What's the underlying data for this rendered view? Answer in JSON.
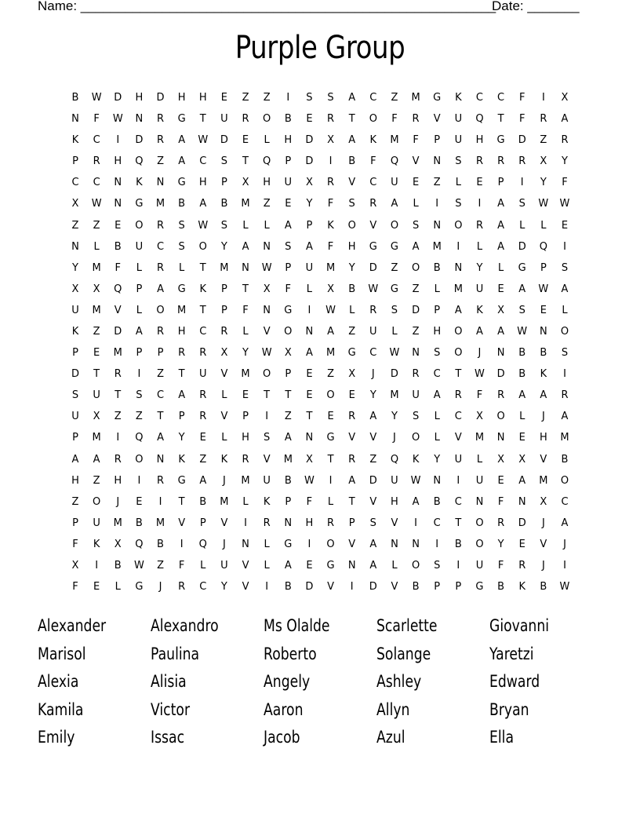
{
  "header": {
    "name_label": "Name: ________________________________________________________",
    "date_label": "Date: _______"
  },
  "title": "Purple Group",
  "grid": [
    "BWDHDHHEZZISSACZMGKCCFIX",
    "NFWNRGTUROBERTOFRVUQTFRA",
    "KCIDRAWDELHDXAKMFPUHGDZR",
    "PRHQZACSTQPDIBFQVNSRRRXY",
    "CCNKNGHPXHUXRVCUEZLEPIYF",
    "XWNGMBABMZEYFSRALISIASWW",
    "ZZEORSWSLLAPKOVOSNORALLE",
    "NLBUCSOYANSAFHGGAMILADQI",
    "YMFLRLTMNWPUMYDZOBNYLGPS",
    "XXQPAGKPTXFLXBWGZLMUEAWA",
    "UMVLOMTPFNGIWLRSDPAKXSEL",
    "KZDARHCRLVONAZULZHOAAWNO",
    "PEMPPRRXYWXAMGCWNSOJNBBS",
    "DTRIZTUVMOPEZXJDRCTWDBKI",
    "SUTSCARLETTEOEYMUARFRAAR",
    "UXZZTPRVPIZTERAYSLCXOLJA",
    "PMIQAYELHSANGVVJOLVMNEHM",
    "AARONKZKRVMXTRZQKYULXXVB",
    "HZHIRGAJMUBWIADUWNIUEAMO",
    "ZOJEITBMLKPFLTVHABCNFNXC",
    "PUMBMVPVIRNHRPSVICTORDJA",
    "FKXQBIQJNLGIOVANNIBOYEVJ",
    "XIBWZFLUVLAEGNALOSIUFRJI",
    "FELGJRCYVIBDVIDVBPPGBKBW"
  ],
  "words": [
    "Alexander",
    "Alexandro",
    "Ms Olalde",
    "Scarlette",
    "Giovanni",
    "Marisol",
    "Paulina",
    "Roberto",
    "Solange",
    "Yaretzi",
    "Alexia",
    "Alisia",
    "Angely",
    "Ashley",
    "Edward",
    "Kamila",
    "Victor",
    "Aaron",
    "Allyn",
    "Bryan",
    "Emily",
    "Issac",
    "Jacob",
    "Azul",
    "Ella"
  ]
}
